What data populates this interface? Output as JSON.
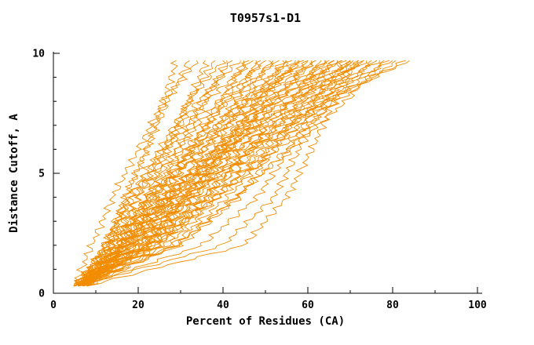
{
  "colors": {
    "curve": "#f28c00",
    "axis": "#000000",
    "background": "#ffffff",
    "text": "#000000"
  },
  "chart_data": {
    "type": "line",
    "title": "T0957s1-D1",
    "xlabel": "Percent of Residues (CA)",
    "ylabel": "Distance Cutoff, A",
    "xlim": [
      0,
      100
    ],
    "ylim": [
      0,
      10
    ],
    "x_ticks": [
      0,
      20,
      40,
      60,
      80,
      100
    ],
    "x_minor_step": 10,
    "y_ticks": [
      0,
      5,
      10
    ],
    "y_minor_step": 1,
    "grid": false,
    "legend": "none",
    "series_y": [
      0.3,
      2,
      4,
      6,
      8,
      9.7
    ],
    "series_x": [
      [
        5,
        13,
        17,
        22,
        26,
        29
      ],
      [
        6,
        12,
        17,
        22,
        27,
        32
      ],
      [
        5,
        9,
        14,
        20,
        26,
        34
      ],
      [
        7,
        16,
        22,
        27,
        32,
        36
      ],
      [
        6,
        14,
        20,
        26,
        32,
        38
      ],
      [
        8,
        13,
        18,
        25,
        32,
        40
      ],
      [
        5,
        17,
        24,
        30,
        36,
        41
      ],
      [
        7,
        15,
        22,
        29,
        35,
        42
      ],
      [
        6,
        12,
        18,
        26,
        34,
        44
      ],
      [
        5,
        18,
        26,
        33,
        40,
        45
      ],
      [
        8,
        17,
        25,
        32,
        39,
        46
      ],
      [
        6,
        12,
        19,
        27,
        36,
        47
      ],
      [
        7,
        20,
        28,
        36,
        43,
        48
      ],
      [
        5,
        16,
        24,
        32,
        41,
        49
      ],
      [
        6,
        13,
        20,
        29,
        39,
        50
      ],
      [
        8,
        22,
        30,
        38,
        45,
        51
      ],
      [
        5,
        16,
        26,
        34,
        43,
        52
      ],
      [
        7,
        14,
        22,
        31,
        41,
        53
      ],
      [
        6,
        21,
        31,
        40,
        48,
        54
      ],
      [
        5,
        17,
        27,
        36,
        46,
        55
      ],
      [
        8,
        15,
        23,
        33,
        44,
        56
      ],
      [
        6,
        22,
        33,
        42,
        50,
        57
      ],
      [
        7,
        19,
        29,
        39,
        48,
        58
      ],
      [
        5,
        13,
        22,
        33,
        45,
        59
      ],
      [
        6,
        23,
        34,
        44,
        53,
        60
      ],
      [
        8,
        21,
        31,
        41,
        51,
        61
      ],
      [
        5,
        14,
        23,
        35,
        47,
        62
      ],
      [
        7,
        25,
        36,
        46,
        56,
        63
      ],
      [
        6,
        20,
        32,
        42,
        53,
        64
      ],
      [
        8,
        17,
        26,
        38,
        50,
        65
      ],
      [
        5,
        25,
        37,
        48,
        58,
        66
      ],
      [
        7,
        21,
        33,
        44,
        56,
        67
      ],
      [
        6,
        15,
        26,
        38,
        52,
        68
      ],
      [
        5,
        26,
        38,
        50,
        61,
        69
      ],
      [
        8,
        23,
        35,
        46,
        58,
        70
      ],
      [
        6,
        16,
        27,
        40,
        54,
        71
      ],
      [
        7,
        28,
        41,
        52,
        64,
        72
      ],
      [
        5,
        21,
        35,
        47,
        60,
        73
      ],
      [
        6,
        16,
        28,
        41,
        56,
        74
      ],
      [
        8,
        29,
        43,
        55,
        66,
        75
      ],
      [
        5,
        22,
        36,
        49,
        63,
        76
      ],
      [
        7,
        18,
        29,
        43,
        59,
        77
      ],
      [
        6,
        29,
        43,
        56,
        69,
        78
      ],
      [
        5,
        23,
        38,
        51,
        65,
        79
      ],
      [
        7,
        18,
        30,
        45,
        61,
        80
      ],
      [
        6,
        24,
        39,
        53,
        67,
        81
      ],
      [
        8,
        19,
        32,
        47,
        64,
        83
      ],
      [
        6,
        18,
        31,
        47,
        64,
        84
      ],
      [
        6,
        22,
        32,
        40,
        49,
        55
      ],
      [
        7,
        15,
        24,
        35,
        46,
        60
      ],
      [
        5,
        24,
        36,
        46,
        56,
        64
      ],
      [
        8,
        17,
        27,
        39,
        52,
        67
      ],
      [
        6,
        27,
        39,
        51,
        62,
        70
      ],
      [
        7,
        17,
        28,
        41,
        56,
        73
      ],
      [
        5,
        18,
        28,
        38,
        48,
        58
      ],
      [
        6,
        19,
        31,
        41,
        51,
        62
      ],
      [
        7,
        35,
        48,
        56,
        62,
        68
      ],
      [
        6,
        40,
        52,
        58,
        64,
        70
      ],
      [
        8,
        45,
        55,
        61,
        66,
        72
      ],
      [
        6,
        30,
        44,
        52,
        59,
        66
      ]
    ]
  }
}
